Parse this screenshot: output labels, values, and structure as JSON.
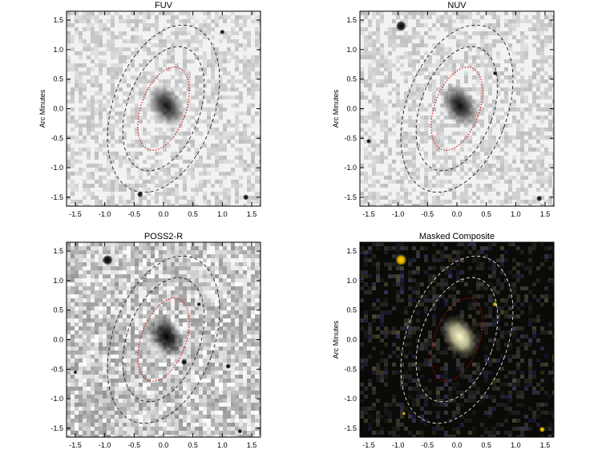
{
  "figure": {
    "panels": [
      {
        "title": "FUV",
        "ylabel": "Arc Minutes",
        "theme": "light",
        "xticks": [
          "-1.5",
          "-1.0",
          "-0.5",
          "0.0",
          "0.5",
          "1.0",
          "1.5"
        ],
        "yticks": [
          "1.5",
          "1.0",
          "0.5",
          "0.0",
          "-0.5",
          "-1.0",
          "-1.5"
        ],
        "galaxy_darkness": 0.9,
        "stars": [
          {
            "x": 1.4,
            "y": -1.5,
            "r": 0.05
          },
          {
            "x": -0.4,
            "y": -1.45,
            "r": 0.05
          },
          {
            "x": 1.0,
            "y": 1.3,
            "r": 0.04
          }
        ]
      },
      {
        "title": "NUV",
        "ylabel": "Arc Minutes",
        "theme": "light",
        "xticks": [
          "-1.5",
          "-1.0",
          "-0.5",
          "0.0",
          "0.5",
          "1.0",
          "1.5"
        ],
        "yticks": [
          "1.5",
          "1.0",
          "0.5",
          "0.0",
          "-0.5",
          "-1.0",
          "-1.5"
        ],
        "galaxy_darkness": 0.95,
        "stars": [
          {
            "x": -0.95,
            "y": 1.4,
            "r": 0.09
          },
          {
            "x": 0.65,
            "y": 0.6,
            "r": 0.04
          },
          {
            "x": 1.4,
            "y": -1.52,
            "r": 0.05
          },
          {
            "x": -1.5,
            "y": -0.55,
            "r": 0.04
          }
        ]
      },
      {
        "title": "POSS2-R",
        "ylabel": "",
        "theme": "light",
        "xticks": [
          "-1.5",
          "-1.0",
          "-0.5",
          "0.0",
          "0.5",
          "1.0",
          "1.5"
        ],
        "yticks": [
          "1.5",
          "1.0",
          "0.5",
          "0.0",
          "-0.5",
          "-1.0",
          "-1.5"
        ],
        "galaxy_darkness": 1.0,
        "stars": [
          {
            "x": -0.95,
            "y": 1.35,
            "r": 0.09
          },
          {
            "x": 0.35,
            "y": -0.38,
            "r": 0.05
          },
          {
            "x": 0.6,
            "y": 0.6,
            "r": 0.035
          },
          {
            "x": 1.1,
            "y": -0.45,
            "r": 0.045
          },
          {
            "x": -1.5,
            "y": -0.55,
            "r": 0.035
          },
          {
            "x": 1.3,
            "y": -1.55,
            "r": 0.04
          }
        ]
      },
      {
        "title": "Masked Composite",
        "ylabel": "Arc Minutes",
        "theme": "dark",
        "xticks": [
          "-1.5",
          "-1.0",
          "-0.5",
          "0.0",
          "0.5",
          "1.0",
          "1.5"
        ],
        "yticks": [
          "1.5",
          "1.0",
          "0.5",
          "0.0",
          "-0.5",
          "-1.0",
          "-1.5"
        ],
        "galaxy_darkness": 1.0,
        "stars": [
          {
            "x": -0.95,
            "y": 1.35,
            "r": 0.1
          },
          {
            "x": 0.65,
            "y": 0.6,
            "r": 0.04
          },
          {
            "x": 1.45,
            "y": -1.52,
            "r": 0.05
          },
          {
            "x": -0.9,
            "y": -1.25,
            "r": 0.03
          }
        ]
      }
    ],
    "colors": {
      "light_bg": "#f2f2f2",
      "dark_bg": "#0a0a06",
      "inner_ellipse": "#e01010",
      "dark_inner_ellipse": "#b01010",
      "outer_ellipse_light": "#222222",
      "outer_ellipse_dark": "#dddddd",
      "composite_galaxy": "#fffbd0",
      "composite_star": "#ffd400"
    }
  }
}
